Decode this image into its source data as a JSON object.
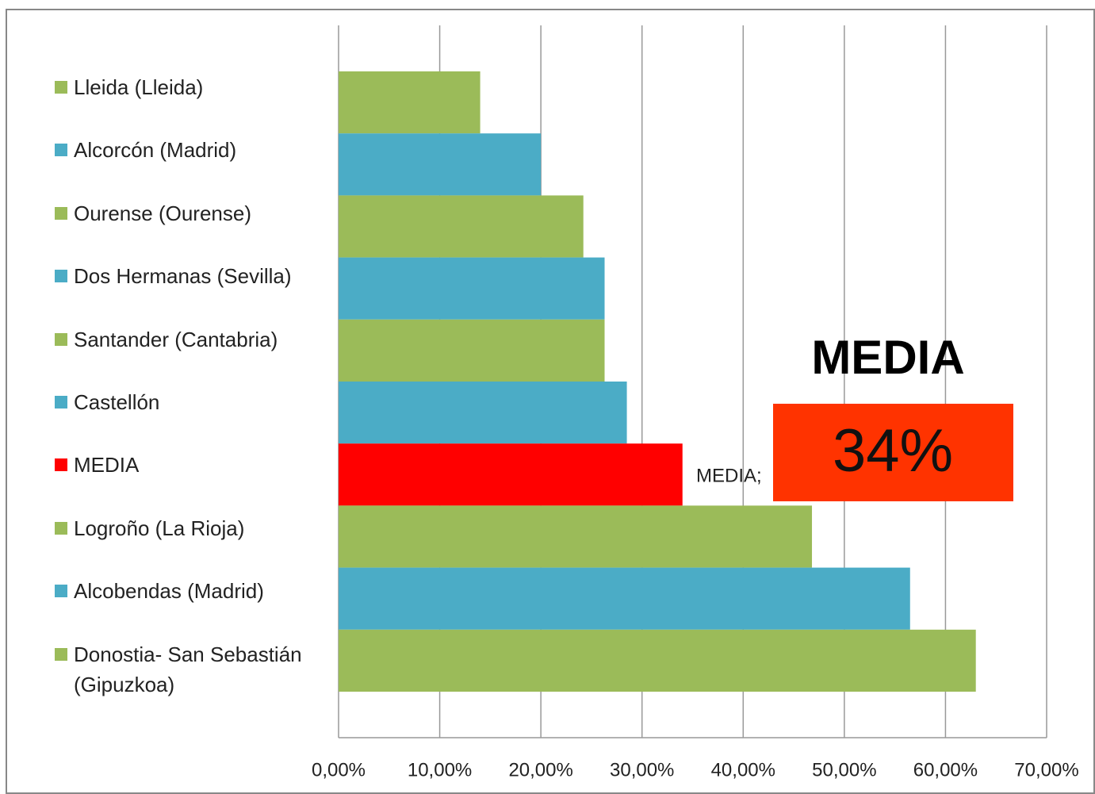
{
  "chart_data": {
    "type": "bar",
    "orientation": "horizontal",
    "categories": [
      "Lleida (Lleida)",
      "Alcorcón (Madrid)",
      "Ourense (Ourense)",
      "Dos Hermanas (Sevilla)",
      "Santander (Cantabria)",
      "Castellón",
      "MEDIA",
      "Logroño (La Rioja)",
      "Alcobendas (Madrid)",
      "Donostia- San Sebastián (Gipuzkoa)"
    ],
    "values": [
      14.0,
      20.0,
      24.2,
      26.3,
      26.3,
      28.5,
      34.0,
      46.8,
      56.5,
      63.0
    ],
    "colors": [
      "#9bbb59",
      "#4bacc6",
      "#9bbb59",
      "#4bacc6",
      "#9bbb59",
      "#4bacc6",
      "#ff0000",
      "#9bbb59",
      "#4bacc6",
      "#9bbb59"
    ],
    "xlim": [
      0,
      70
    ],
    "xticks": [
      {
        "value": 0,
        "label": "0,00%"
      },
      {
        "value": 10,
        "label": "10,00%"
      },
      {
        "value": 20,
        "label": "20,00%"
      },
      {
        "value": 30,
        "label": "30,00%"
      },
      {
        "value": 40,
        "label": "40,00%"
      },
      {
        "value": 50,
        "label": "50,00%"
      },
      {
        "value": 60,
        "label": "60,00%"
      },
      {
        "value": 70,
        "label": "70,00%"
      }
    ],
    "grid": true,
    "annotations": [
      "MEDIA;",
      "MEDIA",
      "34%"
    ]
  }
}
